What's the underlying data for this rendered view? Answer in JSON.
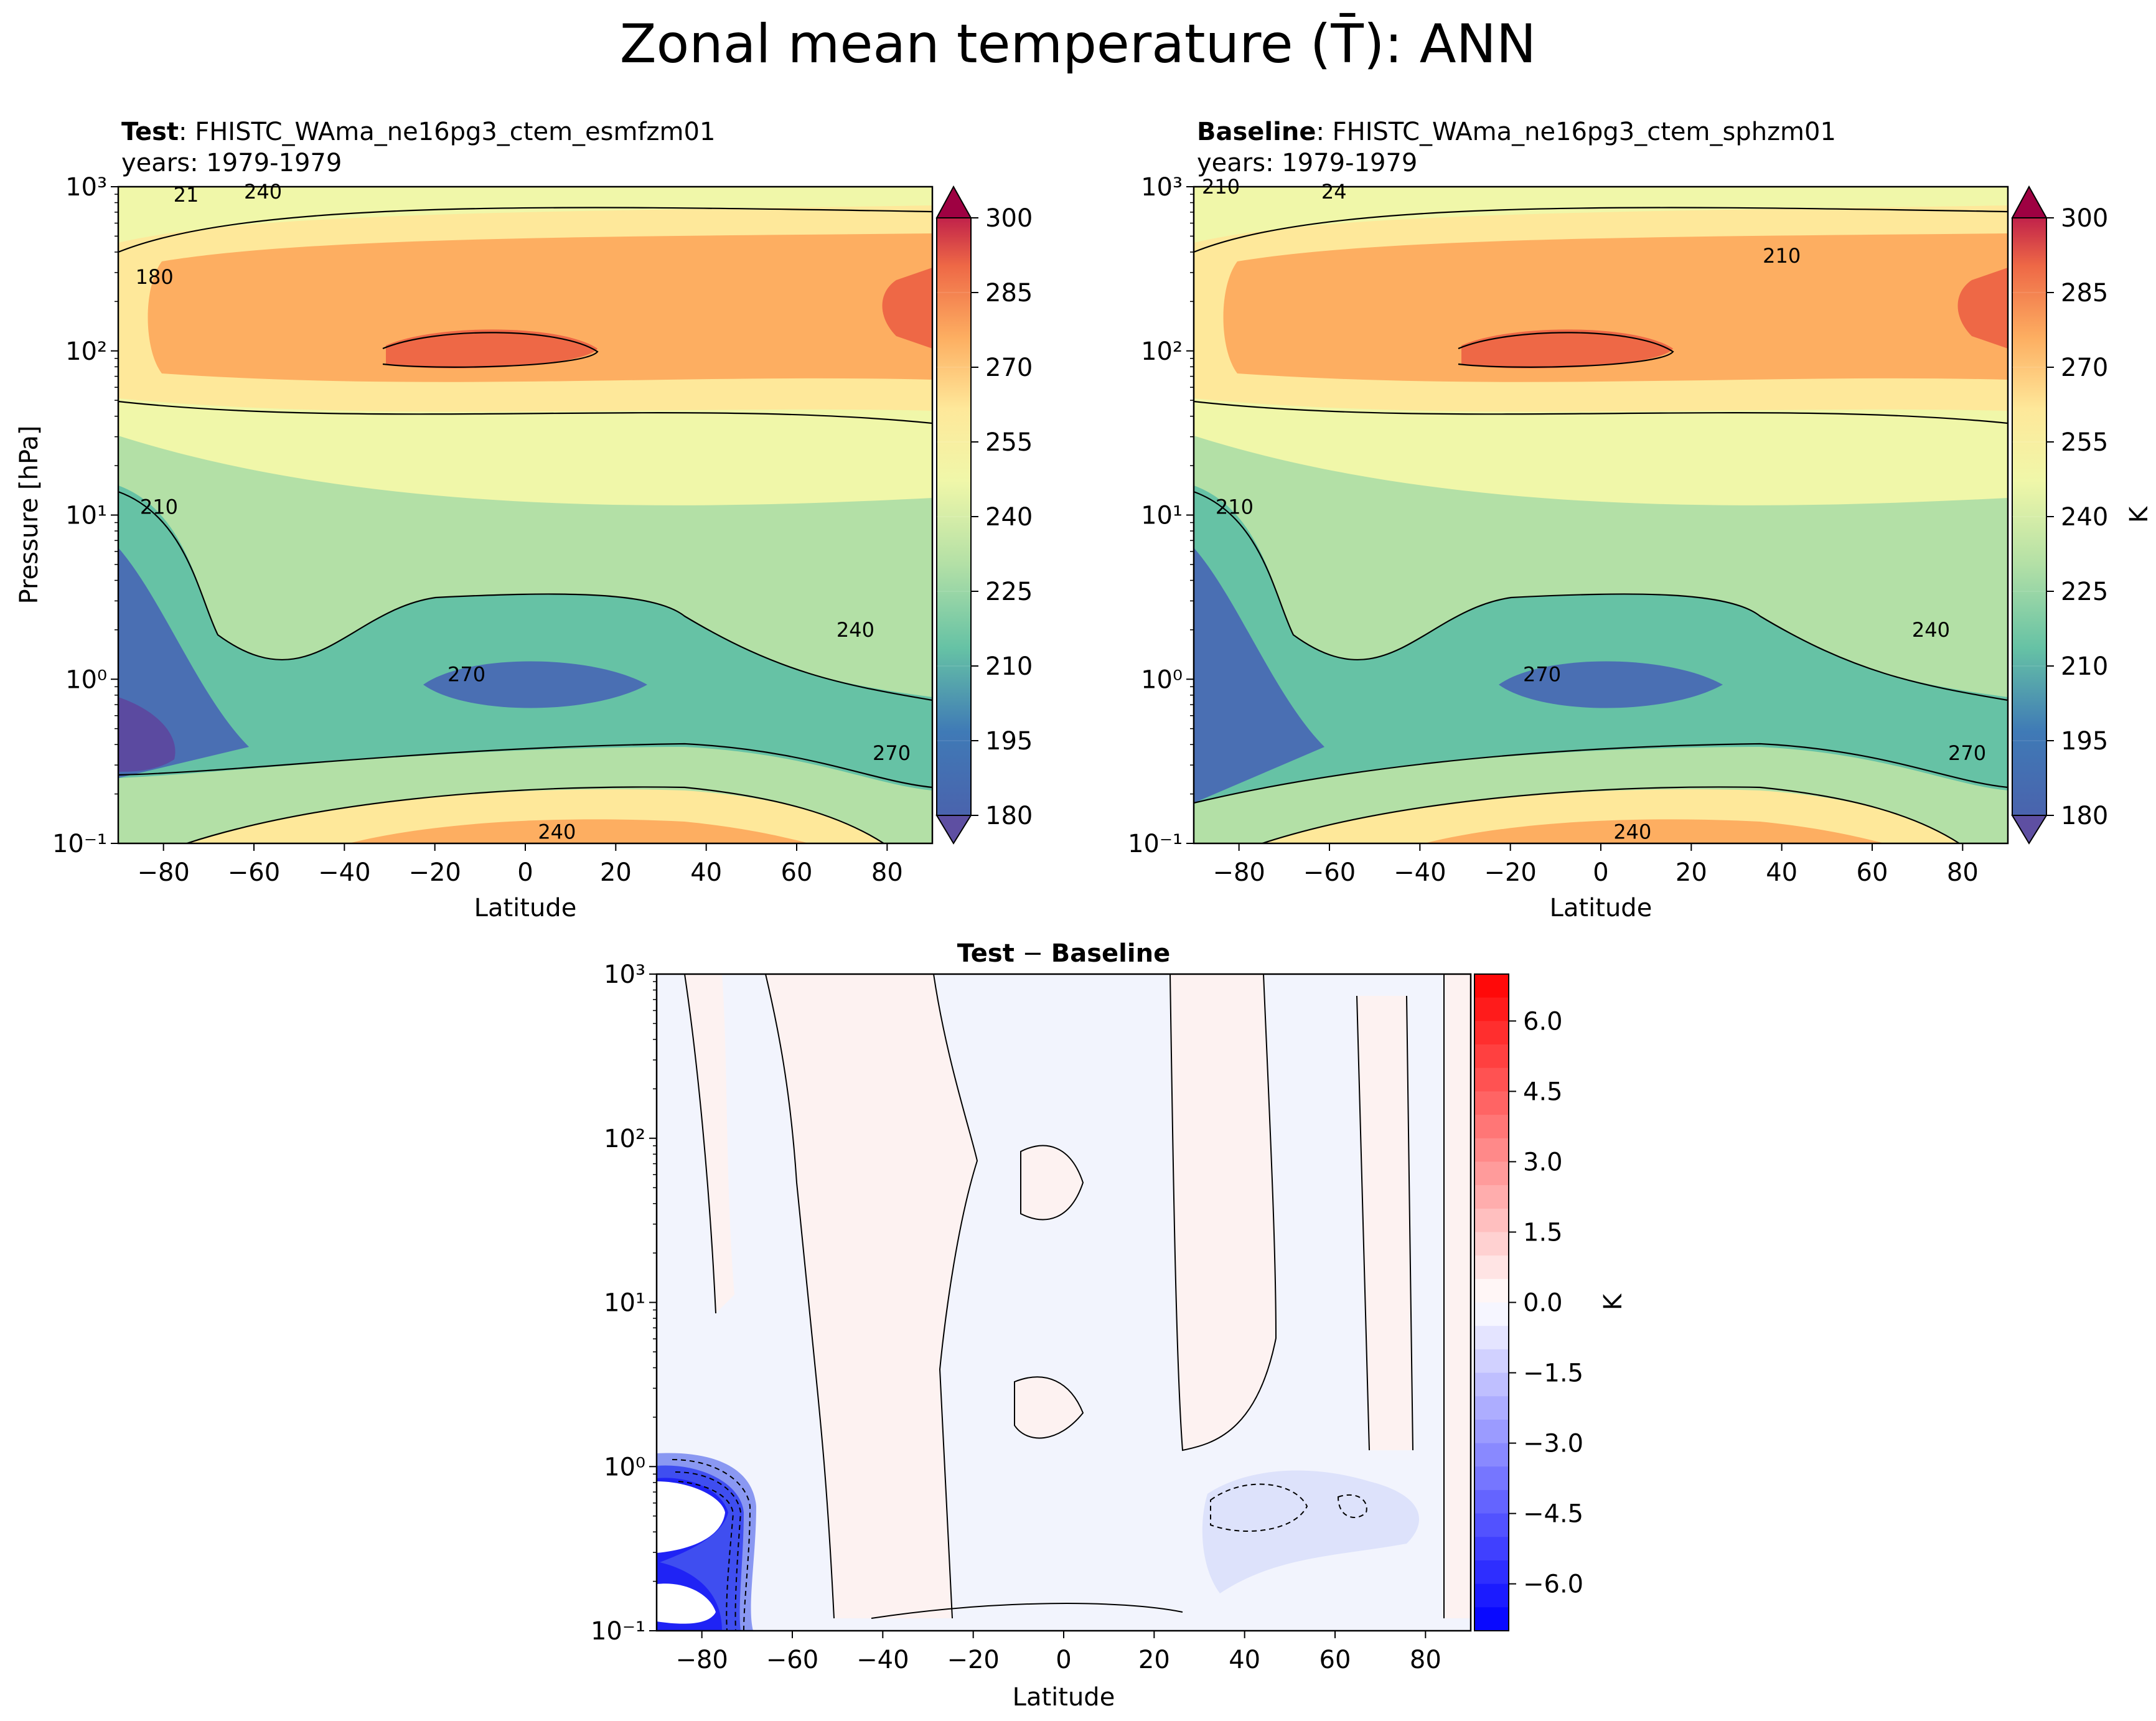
{
  "figure": {
    "title": "Zonal mean temperature (T̄): ANN"
  },
  "chart_data": [
    {
      "type": "contourf",
      "panel": "test",
      "label_bold": "Test",
      "case": ": FHISTC_WAma_ne16pg3_ctem_esmfzm01",
      "years": "years: 1979-1979",
      "xlabel": "Latitude",
      "ylabel": "Pressure [hPa]",
      "xlim": [
        -90,
        90
      ],
      "ylim_log10": [
        3,
        -1
      ],
      "xticks": [
        "−80",
        "−60",
        "−40",
        "−20",
        "0",
        "20",
        "40",
        "60",
        "80"
      ],
      "xtick_values": [
        -80,
        -60,
        -40,
        -20,
        0,
        20,
        40,
        60,
        80
      ],
      "yticks": [
        "10³",
        "10²",
        "10¹",
        "10⁰",
        "10⁻¹"
      ],
      "ytick_values": [
        3,
        2,
        1,
        0,
        -1
      ],
      "contour_levels": [
        180,
        195,
        210,
        225,
        240,
        255,
        270,
        285,
        300
      ],
      "contour_labels": [
        {
          "text": "240",
          "lat": 7,
          "logp": -0.93
        },
        {
          "text": "270",
          "lat": -13,
          "logp": 0.03
        },
        {
          "text": "270",
          "lat": 81,
          "logp": -0.45
        },
        {
          "text": "240",
          "lat": 73,
          "logp": 0.3
        },
        {
          "text": "210",
          "lat": -81,
          "logp": 1.05
        },
        {
          "text": "180",
          "lat": -82,
          "logp": 2.45
        },
        {
          "text": "21",
          "lat": -75,
          "logp": 2.95
        },
        {
          "text": "240",
          "lat": -58,
          "logp": 2.97
        }
      ],
      "colorbar": {
        "ticks": [
          "180",
          "195",
          "210",
          "225",
          "240",
          "255",
          "270",
          "285",
          "300"
        ],
        "label": ""
      }
    },
    {
      "type": "contourf",
      "panel": "baseline",
      "label_bold": "Baseline",
      "case": ": FHISTC_WAma_ne16pg3_ctem_sphzm01",
      "years": "years: 1979-1979",
      "xlabel": "Latitude",
      "xlim": [
        -90,
        90
      ],
      "ylim_log10": [
        3,
        -1
      ],
      "xticks": [
        "−80",
        "−60",
        "−40",
        "−20",
        "0",
        "20",
        "40",
        "60",
        "80"
      ],
      "xtick_values": [
        -80,
        -60,
        -40,
        -20,
        0,
        20,
        40,
        60,
        80
      ],
      "yticks": [
        "10³",
        "10²",
        "10¹",
        "10⁰",
        "10⁻¹"
      ],
      "ytick_values": [
        3,
        2,
        1,
        0,
        -1
      ],
      "contour_levels": [
        180,
        195,
        210,
        225,
        240,
        255,
        270,
        285,
        300
      ],
      "contour_labels": [
        {
          "text": "240",
          "lat": 7,
          "logp": -0.93
        },
        {
          "text": "270",
          "lat": -13,
          "logp": 0.03
        },
        {
          "text": "270",
          "lat": 81,
          "logp": -0.45
        },
        {
          "text": "240",
          "lat": 73,
          "logp": 0.3
        },
        {
          "text": "210",
          "lat": -81,
          "logp": 1.05
        },
        {
          "text": "210",
          "lat": 40,
          "logp": 2.58
        },
        {
          "text": "210",
          "lat": -84,
          "logp": 3.0
        },
        {
          "text": "24",
          "lat": -59,
          "logp": 2.97
        }
      ],
      "colorbar": {
        "ticks": [
          "180",
          "195",
          "210",
          "225",
          "240",
          "255",
          "270",
          "285",
          "300"
        ],
        "label": "K"
      }
    },
    {
      "type": "contourf",
      "panel": "difference",
      "title_a": "Test",
      "title_op": " − ",
      "title_b": "Baseline",
      "xlabel": "Latitude",
      "xlim": [
        -90,
        90
      ],
      "ylim_log10": [
        3,
        -1
      ],
      "xticks": [
        "−80",
        "−60",
        "−40",
        "−20",
        "0",
        "20",
        "40",
        "60",
        "80"
      ],
      "xtick_values": [
        -80,
        -60,
        -40,
        -20,
        0,
        20,
        40,
        60,
        80
      ],
      "yticks": [
        "10³",
        "10²",
        "10¹",
        "10⁰",
        "10⁻¹"
      ],
      "ytick_values": [
        3,
        2,
        1,
        0,
        -1
      ],
      "value_range": [
        -7,
        7
      ],
      "colorbar": {
        "ticks": [
          "6.0",
          "4.5",
          "3.0",
          "1.5",
          "0.0",
          "−1.5",
          "−3.0",
          "−4.5",
          "−6.0"
        ],
        "tick_values": [
          6,
          4.5,
          3,
          1.5,
          0,
          -1.5,
          -3,
          -4.5,
          -6
        ],
        "label": "K"
      }
    }
  ]
}
